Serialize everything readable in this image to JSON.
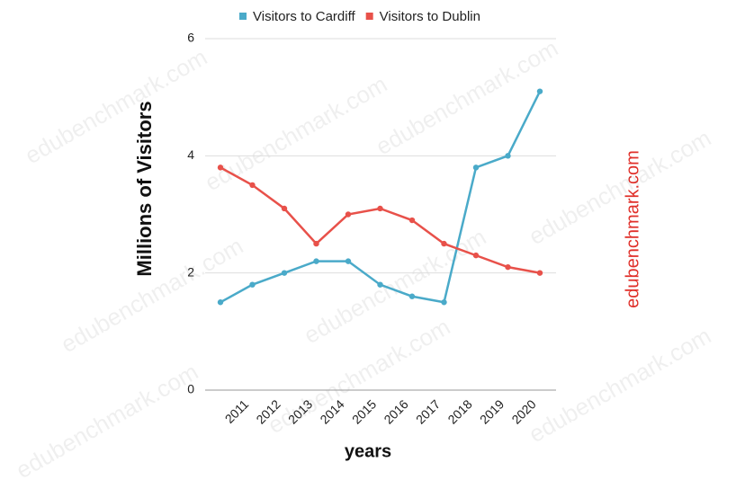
{
  "chart_data": {
    "type": "line",
    "y_label": "Millions of Visitors",
    "x_label": "years",
    "watermark": "edubenchmark.com",
    "categories": [
      null,
      "2011",
      "2012",
      "2013",
      "2014",
      "2015",
      "2016",
      "2017",
      "2018",
      "2019",
      "2020"
    ],
    "series": [
      {
        "name": "Visitors to Cardiff",
        "color": "#4aaac9",
        "values": [
          1.5,
          1.8,
          2.0,
          2.2,
          2.2,
          1.8,
          1.6,
          1.5,
          3.8,
          4.0,
          5.1
        ]
      },
      {
        "name": "Visitors to Dublin",
        "color": "#e8514a",
        "values": [
          3.8,
          3.5,
          3.1,
          2.5,
          3.0,
          3.1,
          2.9,
          2.5,
          2.3,
          2.1,
          2.0
        ]
      }
    ],
    "ylim": [
      0,
      6
    ],
    "yticks": [
      0,
      2,
      4,
      6
    ],
    "grid": true,
    "legend": "top"
  }
}
